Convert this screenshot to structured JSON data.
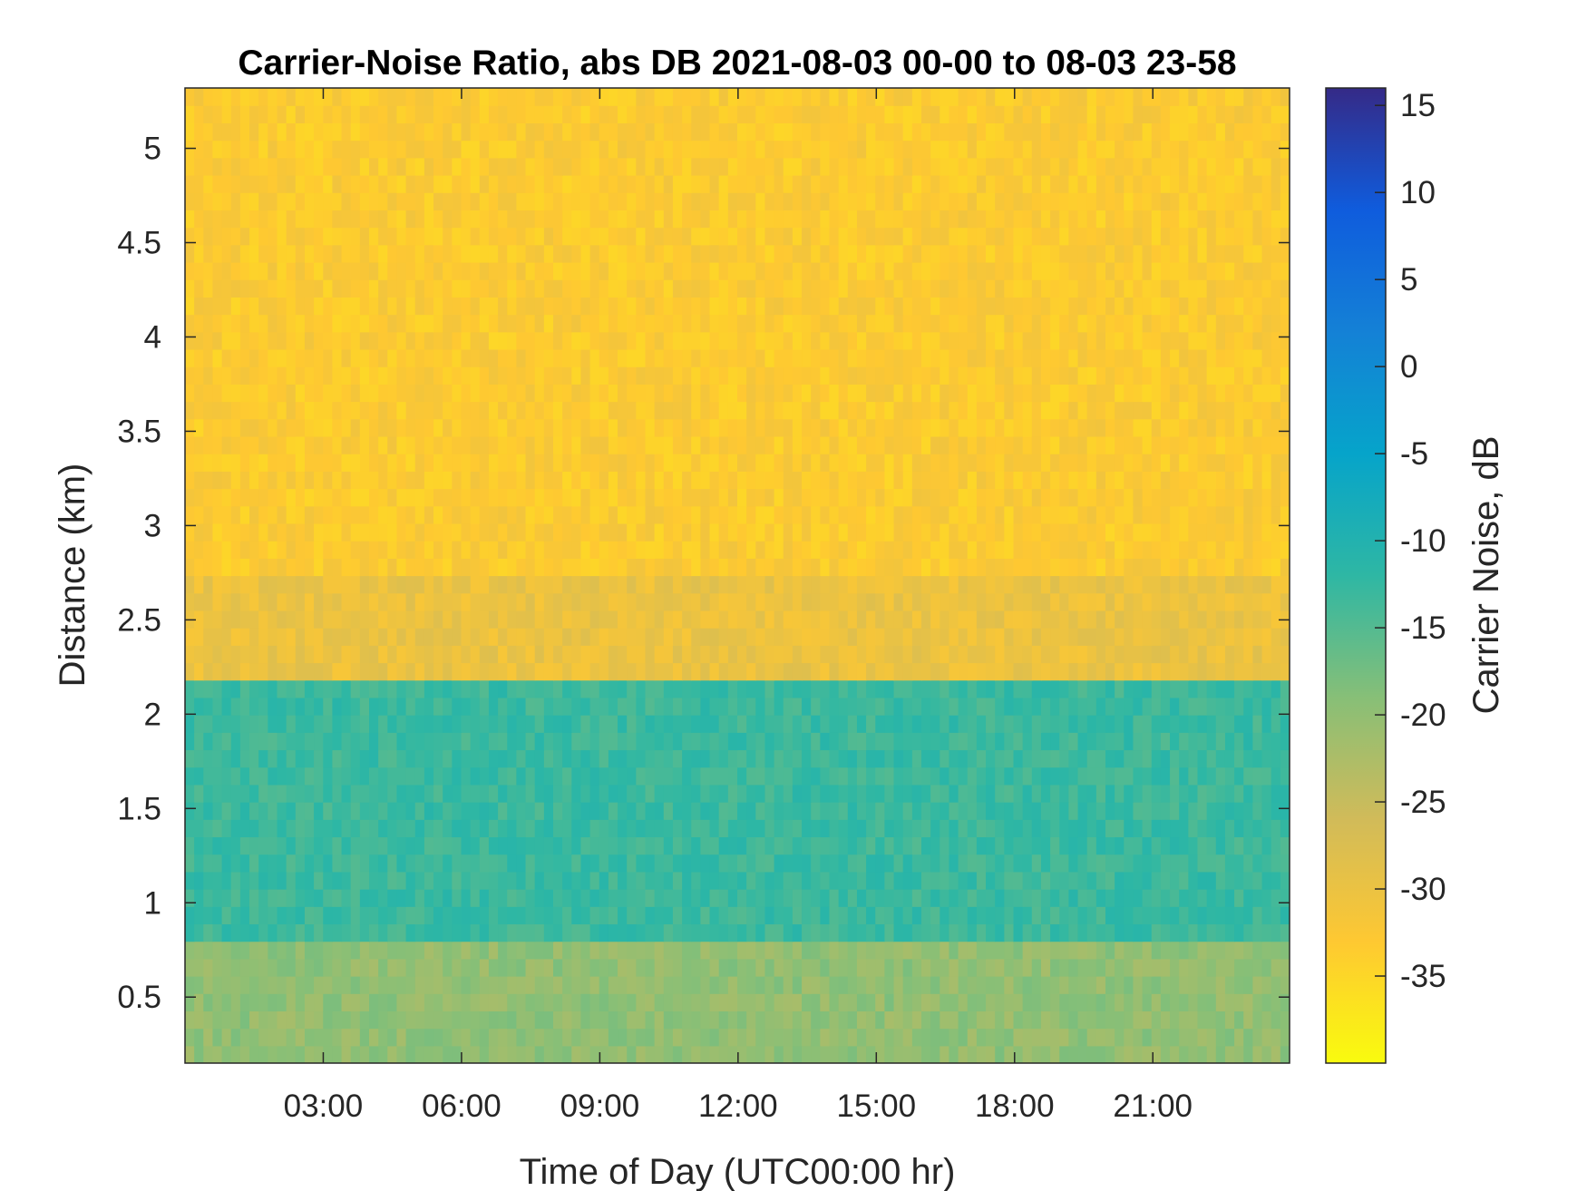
{
  "chart_data": {
    "type": "heatmap",
    "title": "Carrier-Noise Ratio, abs DB 2021-08-03 00-00 to 08-03 23-58",
    "xlabel": "Time of Day (UTC00:00 hr)",
    "ylabel": "Distance (km)",
    "colorbar_label": "Carrier Noise, dB",
    "xlim": [
      "00:00",
      "23:58"
    ],
    "x_ticks": [
      "03:00",
      "06:00",
      "09:00",
      "12:00",
      "15:00",
      "18:00",
      "21:00"
    ],
    "x_tick_hours": [
      3,
      6,
      9,
      12,
      15,
      18,
      21
    ],
    "ylim": [
      0.15,
      5.32
    ],
    "y_ticks": [
      0.5,
      1,
      1.5,
      2,
      2.5,
      3,
      3.5,
      4,
      4.5,
      5
    ],
    "y_tick_labels": [
      "0.5",
      "1",
      "1.5",
      "2",
      "2.5",
      "3",
      "3.5",
      "4",
      "4.5",
      "5"
    ],
    "clim": [
      -40,
      16
    ],
    "colorbar_ticks": [
      15,
      10,
      5,
      0,
      -5,
      -10,
      -15,
      -20,
      -25,
      -30,
      -35
    ],
    "colorbar_tick_labels": [
      "15",
      "10",
      "5",
      "0",
      "-5",
      "-10",
      "-15",
      "-20",
      "-25",
      "-30",
      "-35"
    ],
    "colormap": "parula-reversed",
    "colormap_stops": [
      "#352a87",
      "#0f5cdd",
      "#1481d6",
      "#06a4ca",
      "#2eb7a4",
      "#87bf77",
      "#d1bb59",
      "#fec832",
      "#f9fb0e"
    ],
    "grid": false,
    "approx_profile": [
      {
        "distance_km_max": 0.8,
        "value_db": -20
      },
      {
        "distance_km_max": 2.2,
        "value_db": -13
      },
      {
        "distance_km_max": 2.7,
        "value_db": -30
      },
      {
        "distance_km_max": 5.32,
        "value_db": -33
      }
    ]
  }
}
